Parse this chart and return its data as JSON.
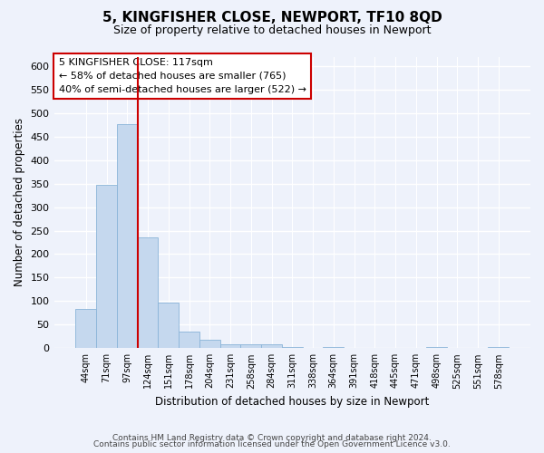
{
  "title": "5, KINGFISHER CLOSE, NEWPORT, TF10 8QD",
  "subtitle": "Size of property relative to detached houses in Newport",
  "xlabel": "Distribution of detached houses by size in Newport",
  "ylabel": "Number of detached properties",
  "bar_values": [
    83,
    348,
    477,
    235,
    97,
    35,
    18,
    8,
    8,
    8,
    2,
    0,
    2,
    0,
    0,
    0,
    0,
    2,
    0,
    0,
    2
  ],
  "x_tick_labels": [
    "44sqm",
    "71sqm",
    "97sqm",
    "124sqm",
    "151sqm",
    "178sqm",
    "204sqm",
    "231sqm",
    "258sqm",
    "284sqm",
    "311sqm",
    "338sqm",
    "364sqm",
    "391sqm",
    "418sqm",
    "445sqm",
    "471sqm",
    "498sqm",
    "525sqm",
    "551sqm",
    "578sqm"
  ],
  "bar_color": "#c5d8ee",
  "bar_edge_color": "#8ab4d8",
  "vline_x_idx": 2.5,
  "vline_color": "#cc0000",
  "ylim": [
    0,
    620
  ],
  "yticks": [
    0,
    50,
    100,
    150,
    200,
    250,
    300,
    350,
    400,
    450,
    500,
    550,
    600
  ],
  "annotation_title": "5 KINGFISHER CLOSE: 117sqm",
  "annotation_line1": "← 58% of detached houses are smaller (765)",
  "annotation_line2": "40% of semi-detached houses are larger (522) →",
  "annotation_box_facecolor": "#ffffff",
  "annotation_box_edgecolor": "#cc0000",
  "footer1": "Contains HM Land Registry data © Crown copyright and database right 2024.",
  "footer2": "Contains public sector information licensed under the Open Government Licence v3.0.",
  "bg_color": "#eef2fb",
  "plot_bg_color": "#eef2fb",
  "figsize": [
    6.0,
    5.0
  ],
  "dpi": 100
}
